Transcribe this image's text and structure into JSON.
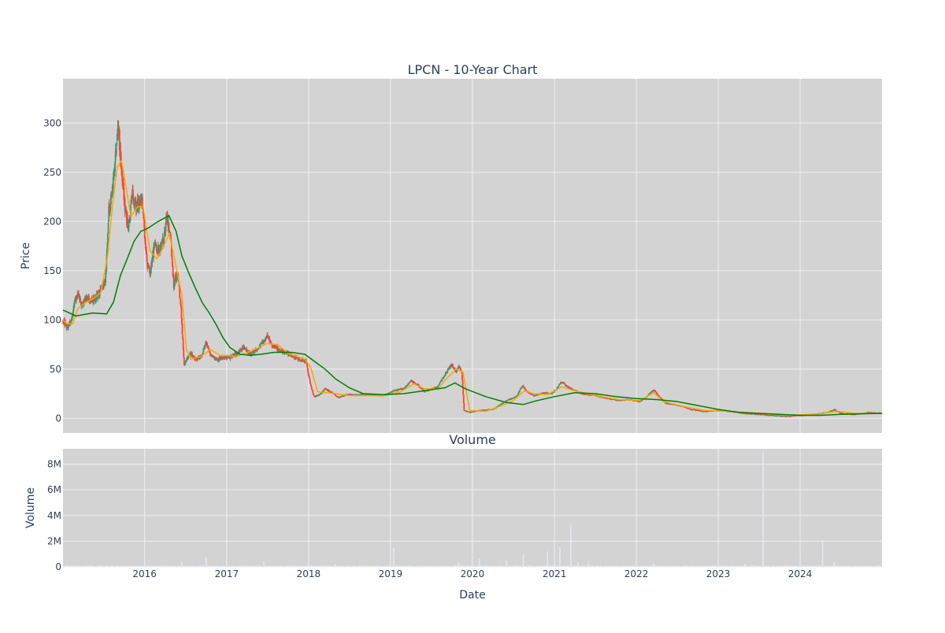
{
  "chart_data": [
    {
      "type": "candlestick",
      "title": "LPCN - 10-Year Chart",
      "ylabel": "Price",
      "xlabel": "",
      "ylim": [
        -15,
        345
      ],
      "yticks": [
        0,
        50,
        100,
        150,
        200,
        250,
        300
      ],
      "grid": true,
      "colors": {
        "up": "#3d9970",
        "down": "#ff4136",
        "ma_short": "#ffa500",
        "ma_long": "#008000",
        "background": "#d3d3d3",
        "grid": "#f0f0f0",
        "text": "#2a3f5f"
      },
      "anchors": [
        [
          "2015-01-02",
          100
        ],
        [
          "2015-01-20",
          92
        ],
        [
          "2015-02-10",
          99
        ],
        [
          "2015-02-25",
          122
        ],
        [
          "2015-03-10",
          128
        ],
        [
          "2015-03-25",
          115
        ],
        [
          "2015-04-15",
          122
        ],
        [
          "2015-05-15",
          120
        ],
        [
          "2015-06-15",
          128
        ],
        [
          "2015-07-10",
          140
        ],
        [
          "2015-07-25",
          210
        ],
        [
          "2015-08-10",
          230
        ],
        [
          "2015-08-25",
          270
        ],
        [
          "2015-09-05",
          300
        ],
        [
          "2015-09-20",
          250
        ],
        [
          "2015-10-05",
          215
        ],
        [
          "2015-10-20",
          190
        ],
        [
          "2015-11-05",
          230
        ],
        [
          "2015-11-25",
          215
        ],
        [
          "2015-12-20",
          222
        ],
        [
          "2016-01-10",
          160
        ],
        [
          "2016-01-25",
          145
        ],
        [
          "2016-02-15",
          180
        ],
        [
          "2016-03-10",
          170
        ],
        [
          "2016-03-25",
          182
        ],
        [
          "2016-04-10",
          205
        ],
        [
          "2016-04-25",
          185
        ],
        [
          "2016-05-10",
          135
        ],
        [
          "2016-05-25",
          150
        ],
        [
          "2016-06-10",
          115
        ],
        [
          "2016-06-25",
          55
        ],
        [
          "2016-07-10",
          62
        ],
        [
          "2016-07-25",
          66
        ],
        [
          "2016-08-15",
          60
        ],
        [
          "2016-09-10",
          63
        ],
        [
          "2016-10-01",
          78
        ],
        [
          "2016-10-20",
          65
        ],
        [
          "2016-11-15",
          60
        ],
        [
          "2016-12-15",
          62
        ],
        [
          "2017-01-15",
          62
        ],
        [
          "2017-02-15",
          66
        ],
        [
          "2017-03-15",
          72
        ],
        [
          "2017-04-15",
          65
        ],
        [
          "2017-05-15",
          70
        ],
        [
          "2017-06-15",
          78
        ],
        [
          "2017-07-01",
          85
        ],
        [
          "2017-07-20",
          74
        ],
        [
          "2017-08-20",
          70
        ],
        [
          "2017-09-20",
          67
        ],
        [
          "2017-10-20",
          63
        ],
        [
          "2017-11-20",
          60
        ],
        [
          "2017-12-20",
          58
        ],
        [
          "2018-01-08",
          35
        ],
        [
          "2018-01-25",
          22
        ],
        [
          "2018-02-20",
          24
        ],
        [
          "2018-03-15",
          30
        ],
        [
          "2018-04-15",
          26
        ],
        [
          "2018-05-15",
          21
        ],
        [
          "2018-06-15",
          24
        ],
        [
          "2018-08-15",
          24
        ],
        [
          "2018-10-15",
          24
        ],
        [
          "2018-12-01",
          23
        ],
        [
          "2019-01-15",
          28
        ],
        [
          "2019-03-01",
          30
        ],
        [
          "2019-04-01",
          38
        ],
        [
          "2019-05-01",
          34
        ],
        [
          "2019-06-01",
          27
        ],
        [
          "2019-07-01",
          30
        ],
        [
          "2019-08-01",
          32
        ],
        [
          "2019-09-01",
          45
        ],
        [
          "2019-10-01",
          55
        ],
        [
          "2019-10-20",
          47
        ],
        [
          "2019-11-01",
          53
        ],
        [
          "2019-11-15",
          47
        ],
        [
          "2019-11-25",
          8
        ],
        [
          "2019-12-20",
          6
        ],
        [
          "2020-02-01",
          8
        ],
        [
          "2020-04-01",
          9
        ],
        [
          "2020-06-01",
          18
        ],
        [
          "2020-07-15",
          22
        ],
        [
          "2020-08-10",
          33
        ],
        [
          "2020-09-01",
          27
        ],
        [
          "2020-10-01",
          23
        ],
        [
          "2020-11-15",
          26
        ],
        [
          "2020-12-20",
          25
        ],
        [
          "2021-01-10",
          30
        ],
        [
          "2021-02-01",
          37
        ],
        [
          "2021-03-01",
          32
        ],
        [
          "2021-04-01",
          28
        ],
        [
          "2021-05-01",
          25
        ],
        [
          "2021-07-01",
          23
        ],
        [
          "2021-09-01",
          20
        ],
        [
          "2021-10-15",
          18
        ],
        [
          "2021-12-01",
          19
        ],
        [
          "2022-01-15",
          17
        ],
        [
          "2022-02-15",
          22
        ],
        [
          "2022-03-20",
          29
        ],
        [
          "2022-04-15",
          21
        ],
        [
          "2022-05-15",
          15
        ],
        [
          "2022-07-15",
          13
        ],
        [
          "2022-09-01",
          9
        ],
        [
          "2022-11-01",
          7
        ],
        [
          "2023-01-01",
          8
        ],
        [
          "2023-03-01",
          7
        ],
        [
          "2023-05-01",
          5
        ],
        [
          "2023-07-01",
          4
        ],
        [
          "2023-09-01",
          3
        ],
        [
          "2023-11-01",
          2
        ],
        [
          "2024-01-01",
          3
        ],
        [
          "2024-03-01",
          4
        ],
        [
          "2024-05-01",
          6
        ],
        [
          "2024-06-01",
          9
        ],
        [
          "2024-07-01",
          5
        ],
        [
          "2024-09-01",
          4
        ],
        [
          "2024-11-01",
          6
        ],
        [
          "2024-12-31",
          5
        ]
      ],
      "ma_short": [
        [
          "2015-01-02",
          100
        ],
        [
          "2015-01-20",
          96
        ],
        [
          "2015-02-15",
          96
        ],
        [
          "2015-03-10",
          112
        ],
        [
          "2015-04-15",
          118
        ],
        [
          "2015-05-20",
          122
        ],
        [
          "2015-06-20",
          128
        ],
        [
          "2015-07-20",
          165
        ],
        [
          "2015-08-10",
          215
        ],
        [
          "2015-09-01",
          255
        ],
        [
          "2015-09-20",
          262
        ],
        [
          "2015-10-10",
          235
        ],
        [
          "2015-11-01",
          205
        ],
        [
          "2015-12-01",
          215
        ],
        [
          "2015-12-25",
          215
        ],
        [
          "2016-01-25",
          170
        ],
        [
          "2016-02-25",
          162
        ],
        [
          "2016-03-20",
          172
        ],
        [
          "2016-04-20",
          188
        ],
        [
          "2016-05-15",
          160
        ],
        [
          "2016-06-15",
          125
        ],
        [
          "2016-07-05",
          70
        ],
        [
          "2016-07-25",
          60
        ],
        [
          "2016-09-10",
          63
        ],
        [
          "2016-10-20",
          70
        ],
        [
          "2016-12-01",
          64
        ],
        [
          "2017-02-15",
          63
        ],
        [
          "2017-04-15",
          68
        ],
        [
          "2017-07-01",
          76
        ],
        [
          "2017-08-15",
          75
        ],
        [
          "2017-10-01",
          66
        ],
        [
          "2017-12-15",
          60
        ],
        [
          "2018-01-10",
          52
        ],
        [
          "2018-02-10",
          27
        ],
        [
          "2018-03-20",
          26
        ],
        [
          "2018-05-01",
          25
        ],
        [
          "2018-07-01",
          23
        ],
        [
          "2018-12-01",
          23
        ],
        [
          "2019-02-15",
          27
        ],
        [
          "2019-04-15",
          35
        ],
        [
          "2019-06-01",
          30
        ],
        [
          "2019-08-01",
          30
        ],
        [
          "2019-09-15",
          42
        ],
        [
          "2019-10-20",
          50
        ],
        [
          "2019-11-20",
          47
        ],
        [
          "2019-12-20",
          8
        ],
        [
          "2020-03-01",
          7
        ],
        [
          "2020-05-01",
          12
        ],
        [
          "2020-07-01",
          18
        ],
        [
          "2020-08-20",
          28
        ],
        [
          "2020-10-01",
          25
        ],
        [
          "2020-12-01",
          24
        ],
        [
          "2021-02-01",
          32
        ],
        [
          "2021-04-01",
          28
        ],
        [
          "2021-07-01",
          23
        ],
        [
          "2021-10-15",
          19
        ],
        [
          "2022-01-15",
          18
        ],
        [
          "2022-03-20",
          26
        ],
        [
          "2022-05-01",
          17
        ],
        [
          "2022-08-01",
          12
        ],
        [
          "2022-11-01",
          8
        ],
        [
          "2023-03-01",
          7
        ],
        [
          "2023-07-01",
          5
        ],
        [
          "2023-11-01",
          3
        ],
        [
          "2024-03-01",
          4
        ],
        [
          "2024-06-15",
          7
        ],
        [
          "2024-09-01",
          5
        ],
        [
          "2024-12-31",
          5
        ]
      ],
      "ma_long": [
        [
          "2015-01-02",
          110
        ],
        [
          "2015-03-01",
          104
        ],
        [
          "2015-05-15",
          107
        ],
        [
          "2015-07-15",
          106
        ],
        [
          "2015-08-15",
          118
        ],
        [
          "2015-09-15",
          145
        ],
        [
          "2015-10-15",
          162
        ],
        [
          "2015-11-15",
          180
        ],
        [
          "2015-12-15",
          190
        ],
        [
          "2016-01-15",
          193
        ],
        [
          "2016-03-01",
          200
        ],
        [
          "2016-04-18",
          206
        ],
        [
          "2016-05-20",
          190
        ],
        [
          "2016-06-15",
          165
        ],
        [
          "2016-07-15",
          148
        ],
        [
          "2016-08-15",
          132
        ],
        [
          "2016-09-15",
          117
        ],
        [
          "2016-10-15",
          107
        ],
        [
          "2016-11-15",
          95
        ],
        [
          "2016-12-15",
          82
        ],
        [
          "2017-01-15",
          72
        ],
        [
          "2017-03-01",
          65
        ],
        [
          "2017-04-15",
          64
        ],
        [
          "2017-06-01",
          65
        ],
        [
          "2017-08-01",
          67
        ],
        [
          "2017-10-15",
          67
        ],
        [
          "2017-12-15",
          65
        ],
        [
          "2018-02-01",
          57
        ],
        [
          "2018-03-15",
          50
        ],
        [
          "2018-05-01",
          40
        ],
        [
          "2018-07-01",
          31
        ],
        [
          "2018-09-01",
          25
        ],
        [
          "2018-12-01",
          24
        ],
        [
          "2019-03-01",
          25
        ],
        [
          "2019-06-01",
          28
        ],
        [
          "2019-09-01",
          31
        ],
        [
          "2019-10-15",
          36
        ],
        [
          "2019-12-01",
          30
        ],
        [
          "2020-03-01",
          22
        ],
        [
          "2020-06-01",
          16
        ],
        [
          "2020-08-15",
          14
        ],
        [
          "2020-10-15",
          18
        ],
        [
          "2021-01-01",
          22
        ],
        [
          "2021-04-01",
          26
        ],
        [
          "2021-07-01",
          25
        ],
        [
          "2021-10-01",
          22
        ],
        [
          "2022-01-01",
          20
        ],
        [
          "2022-04-01",
          19
        ],
        [
          "2022-07-01",
          17
        ],
        [
          "2022-10-01",
          13
        ],
        [
          "2023-01-01",
          9
        ],
        [
          "2023-04-01",
          6
        ],
        [
          "2023-07-01",
          5
        ],
        [
          "2023-10-01",
          4
        ],
        [
          "2024-01-01",
          3
        ],
        [
          "2024-04-01",
          3
        ],
        [
          "2024-07-01",
          4
        ],
        [
          "2024-12-31",
          5
        ]
      ]
    },
    {
      "type": "bar",
      "title": "Volume",
      "ylabel": "Volume",
      "xlabel": "Date",
      "ylim": [
        0,
        9200000
      ],
      "yticks": [
        0,
        2000000,
        4000000,
        6000000,
        8000000
      ],
      "ytick_labels": [
        "0",
        "2M",
        "4M",
        "6M",
        "8M"
      ],
      "xrange": [
        "2015-01-02",
        "2024-12-31"
      ],
      "xticks": [
        "2016-01-01",
        "2017-01-01",
        "2018-01-01",
        "2019-01-01",
        "2020-01-01",
        "2021-01-01",
        "2022-01-01",
        "2023-01-01",
        "2024-01-01"
      ],
      "xtick_labels": [
        "2016",
        "2017",
        "2018",
        "2019",
        "2020",
        "2021",
        "2022",
        "2023",
        "2024"
      ],
      "bar_color": "#e6e6f5",
      "spikes": [
        [
          "2015-01-20",
          150000
        ],
        [
          "2015-08-10",
          120000
        ],
        [
          "2016-06-15",
          400000
        ],
        [
          "2016-10-01",
          700000
        ],
        [
          "2017-06-15",
          450000
        ],
        [
          "2018-05-01",
          200000
        ],
        [
          "2019-01-15",
          1450000
        ],
        [
          "2019-11-01",
          400000
        ],
        [
          "2020-02-01",
          600000
        ],
        [
          "2020-06-01",
          500000
        ],
        [
          "2020-08-15",
          1000000
        ],
        [
          "2020-12-01",
          1200000
        ],
        [
          "2021-01-25",
          1550000
        ],
        [
          "2021-03-15",
          3300000
        ],
        [
          "2021-04-15",
          400000
        ],
        [
          "2021-06-01",
          300000
        ],
        [
          "2022-03-20",
          300000
        ],
        [
          "2023-05-01",
          250000
        ],
        [
          "2023-07-20",
          9000000
        ],
        [
          "2024-01-01",
          650000
        ],
        [
          "2024-04-10",
          2100000
        ],
        [
          "2024-06-01",
          400000
        ]
      ]
    }
  ]
}
